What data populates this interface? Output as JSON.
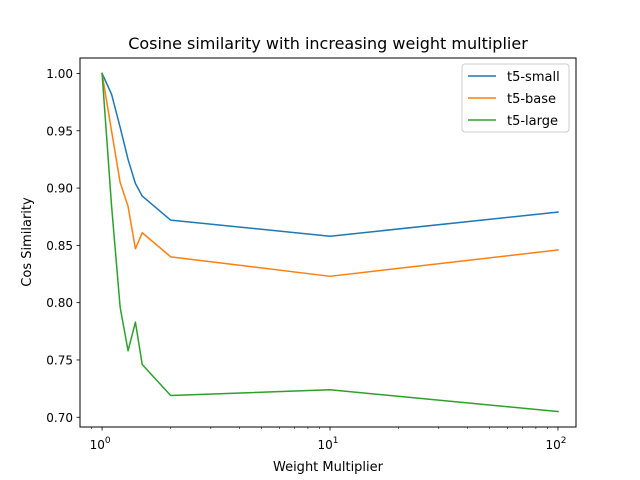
{
  "chart_data": {
    "type": "line",
    "title": "Cosine similarity with increasing weight multiplier",
    "xlabel": "Weight Multiplier",
    "ylabel": "Cos Similarity",
    "xscale": "log",
    "xlim": [
      0.8,
      120
    ],
    "ylim": [
      0.6915,
      1.0135
    ],
    "grid": false,
    "legend_position": "top-right",
    "x_ticks": [
      {
        "value": 1,
        "base": "10",
        "exp": "0"
      },
      {
        "value": 10,
        "base": "10",
        "exp": "1"
      },
      {
        "value": 100,
        "base": "10",
        "exp": "2"
      }
    ],
    "y_ticks": [
      {
        "value": 0.7,
        "label": "0.70"
      },
      {
        "value": 0.75,
        "label": "0.75"
      },
      {
        "value": 0.8,
        "label": "0.80"
      },
      {
        "value": 0.85,
        "label": "0.85"
      },
      {
        "value": 0.9,
        "label": "0.90"
      },
      {
        "value": 0.95,
        "label": "0.95"
      },
      {
        "value": 1.0,
        "label": "1.00"
      }
    ],
    "series": [
      {
        "name": "t5-small",
        "color": "#1f77b4",
        "x": [
          1,
          1.1,
          1.2,
          1.3,
          1.4,
          1.5,
          2,
          10,
          100
        ],
        "y": [
          1.0,
          0.982,
          0.953,
          0.925,
          0.904,
          0.893,
          0.872,
          0.858,
          0.879
        ]
      },
      {
        "name": "t5-base",
        "color": "#ff7f0e",
        "x": [
          1,
          1.1,
          1.2,
          1.3,
          1.4,
          1.5,
          2,
          10,
          100
        ],
        "y": [
          1.0,
          0.95,
          0.905,
          0.884,
          0.847,
          0.861,
          0.84,
          0.823,
          0.846
        ]
      },
      {
        "name": "t5-large",
        "color": "#2ca02c",
        "x": [
          1,
          1.1,
          1.2,
          1.3,
          1.4,
          1.5,
          2,
          10,
          100
        ],
        "y": [
          1.0,
          0.885,
          0.796,
          0.758,
          0.783,
          0.746,
          0.719,
          0.724,
          0.705
        ]
      }
    ]
  }
}
